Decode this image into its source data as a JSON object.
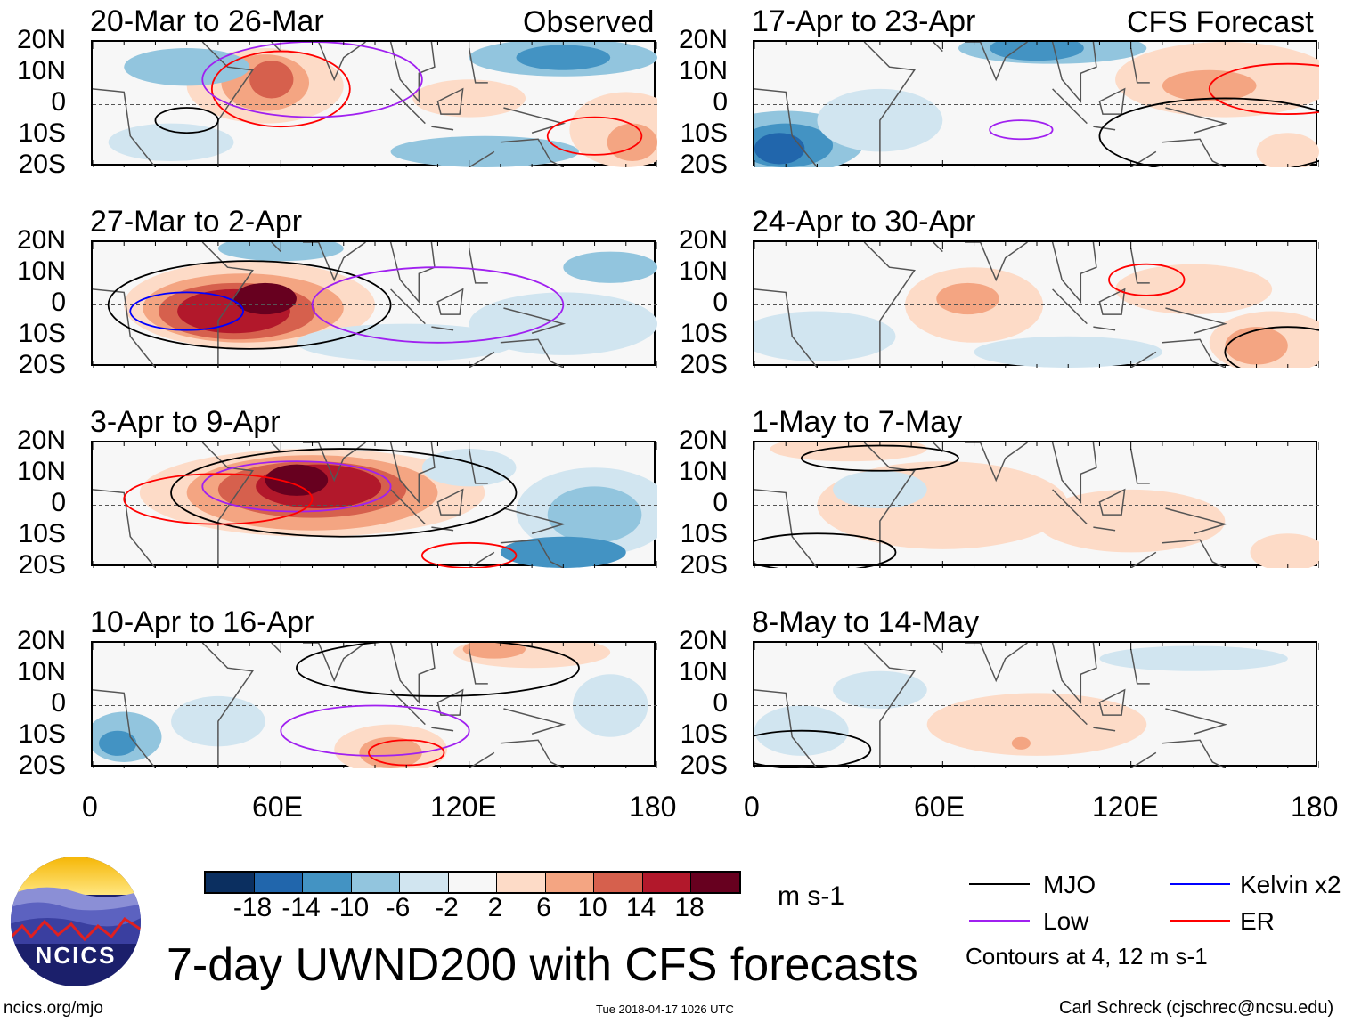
{
  "headers": {
    "observed": "Observed",
    "forecast": "CFS Forecast"
  },
  "observed_panels": [
    {
      "title": "20-Mar to 26-Mar"
    },
    {
      "title": "27-Mar to 2-Apr"
    },
    {
      "title": "3-Apr to 9-Apr"
    },
    {
      "title": "10-Apr to 16-Apr"
    }
  ],
  "forecast_panels": [
    {
      "title": "17-Apr to 23-Apr"
    },
    {
      "title": "24-Apr to 30-Apr"
    },
    {
      "title": "1-May to 7-May"
    },
    {
      "title": "8-May to 14-May"
    }
  ],
  "lat_labels": [
    "20N",
    "10N",
    "0",
    "10S",
    "20S"
  ],
  "lon_labels": [
    "0",
    "60E",
    "120E",
    "180"
  ],
  "colorbar": {
    "colors": [
      "#0b2f60",
      "#2166ac",
      "#4393c3",
      "#92c5de",
      "#d1e5f0",
      "#f7f7f7",
      "#fddbc7",
      "#f4a582",
      "#d6604d",
      "#b2182b",
      "#67001f"
    ],
    "labels": [
      "-18",
      "-14",
      "-10",
      "-6",
      "-2",
      "2",
      "6",
      "10",
      "14",
      "18"
    ],
    "units": "m s-1"
  },
  "legend": {
    "items": [
      {
        "label": "MJO",
        "color": "#000000"
      },
      {
        "label": "Kelvin x2",
        "color": "#0000ff"
      },
      {
        "label": "Low",
        "color": "#a020f0"
      },
      {
        "label": "ER",
        "color": "#ff0000"
      }
    ],
    "contours_note": "Contours at 4, 12 m s-1"
  },
  "logo": {
    "text": "NCICS"
  },
  "title": "7-day UWND200 with CFS forecasts",
  "footer": {
    "url": "ncics.org/mjo",
    "timestamp": "Tue 2018-04-17 1026 UTC",
    "author": "Carl Schreck (cjschrec@ncsu.edu)"
  }
}
